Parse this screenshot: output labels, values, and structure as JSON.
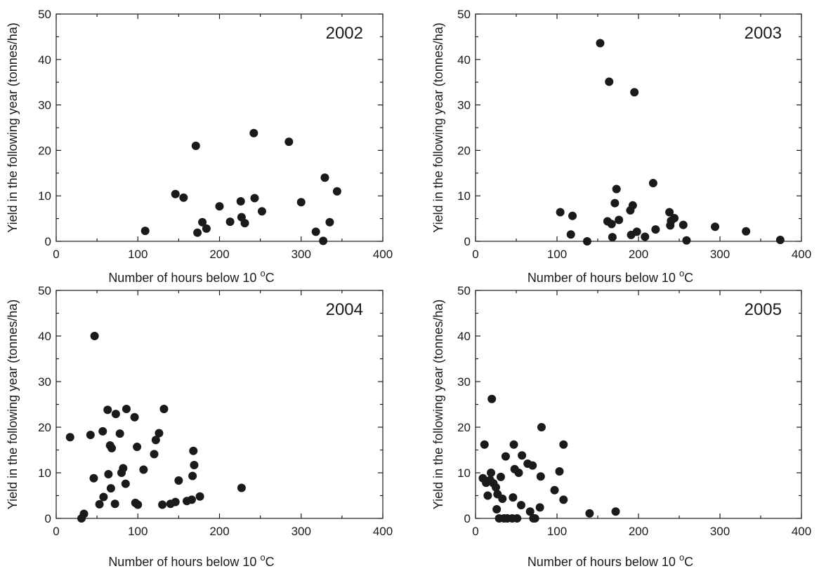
{
  "chart_data": [
    {
      "type": "scatter",
      "title": "2002",
      "xlabel": "Number of hours below 10",
      "xlabel_unit_sup": "o",
      "xlabel_unit": "C",
      "ylabel": "Yield in the following year (tonnes/ha)",
      "xlim": [
        0,
        400
      ],
      "ylim": [
        0,
        50
      ],
      "xticks": [
        "0",
        "100",
        "200",
        "300",
        "400"
      ],
      "yticks": [
        "0",
        "10",
        "20",
        "30",
        "40",
        "50"
      ],
      "grid": false,
      "points": [
        [
          109,
          2.3
        ],
        [
          146,
          10.4
        ],
        [
          156,
          9.6
        ],
        [
          171,
          21.0
        ],
        [
          173,
          1.9
        ],
        [
          179,
          4.2
        ],
        [
          184,
          2.8
        ],
        [
          200,
          7.7
        ],
        [
          213,
          4.3
        ],
        [
          226,
          8.8
        ],
        [
          227,
          5.3
        ],
        [
          231,
          4.0
        ],
        [
          242,
          23.8
        ],
        [
          243,
          9.5
        ],
        [
          252,
          6.6
        ],
        [
          285,
          21.9
        ],
        [
          300,
          8.6
        ],
        [
          318,
          2.1
        ],
        [
          327,
          0.1
        ],
        [
          329,
          14.0
        ],
        [
          335,
          4.2
        ],
        [
          344,
          11.0
        ]
      ]
    },
    {
      "type": "scatter",
      "title": "2003",
      "xlabel": "Number of hours below 10",
      "xlabel_unit_sup": "o",
      "xlabel_unit": "C",
      "ylabel": "Yield in the following year (tonnes/ha)",
      "xlim": [
        0,
        400
      ],
      "ylim": [
        0,
        50
      ],
      "xticks": [
        "0",
        "100",
        "200",
        "300",
        "400"
      ],
      "yticks": [
        "0",
        "10",
        "20",
        "30",
        "40",
        "50"
      ],
      "grid": false,
      "points": [
        [
          104,
          6.4
        ],
        [
          117,
          1.5
        ],
        [
          119,
          5.6
        ],
        [
          137,
          0.0
        ],
        [
          153,
          43.6
        ],
        [
          162,
          4.4
        ],
        [
          164,
          35.1
        ],
        [
          167,
          3.8
        ],
        [
          168,
          0.9
        ],
        [
          171,
          8.4
        ],
        [
          173,
          11.5
        ],
        [
          176,
          4.7
        ],
        [
          190,
          6.8
        ],
        [
          191,
          1.4
        ],
        [
          193,
          7.9
        ],
        [
          195,
          32.8
        ],
        [
          198,
          2.1
        ],
        [
          208,
          1.0
        ],
        [
          218,
          12.8
        ],
        [
          221,
          2.6
        ],
        [
          238,
          6.4
        ],
        [
          239,
          3.5
        ],
        [
          240,
          4.5
        ],
        [
          244,
          5.1
        ],
        [
          255,
          3.6
        ],
        [
          259,
          0.2
        ],
        [
          294,
          3.2
        ],
        [
          332,
          2.2
        ],
        [
          374,
          0.3
        ]
      ]
    },
    {
      "type": "scatter",
      "title": "2004",
      "xlabel": "Number of hours below 10",
      "xlabel_unit_sup": "o",
      "xlabel_unit": "C",
      "ylabel": "Yield in the following year (tonnes/ha)",
      "xlim": [
        0,
        400
      ],
      "ylim": [
        0,
        50
      ],
      "xticks": [
        "0",
        "100",
        "200",
        "300",
        "400"
      ],
      "yticks": [
        "0",
        "10",
        "20",
        "30",
        "40",
        "50"
      ],
      "grid": false,
      "points": [
        [
          17,
          17.8
        ],
        [
          31,
          0.0
        ],
        [
          34,
          1.0
        ],
        [
          42,
          18.3
        ],
        [
          46,
          8.8
        ],
        [
          47,
          40.0
        ],
        [
          53,
          3.1
        ],
        [
          57,
          19.1
        ],
        [
          58,
          4.7
        ],
        [
          63,
          23.8
        ],
        [
          64,
          9.7
        ],
        [
          66,
          16.0
        ],
        [
          67,
          6.6
        ],
        [
          68,
          15.4
        ],
        [
          72,
          3.2
        ],
        [
          73,
          22.9
        ],
        [
          78,
          18.6
        ],
        [
          80,
          10.0
        ],
        [
          82,
          11.0
        ],
        [
          85,
          7.6
        ],
        [
          86,
          24.0
        ],
        [
          96,
          22.2
        ],
        [
          97,
          3.4
        ],
        [
          99,
          15.7
        ],
        [
          100,
          3.0
        ],
        [
          107,
          10.7
        ],
        [
          120,
          14.1
        ],
        [
          122,
          17.2
        ],
        [
          126,
          18.7
        ],
        [
          130,
          3.0
        ],
        [
          132,
          24.0
        ],
        [
          140,
          3.2
        ],
        [
          146,
          3.6
        ],
        [
          150,
          8.3
        ],
        [
          160,
          3.8
        ],
        [
          166,
          4.1
        ],
        [
          167,
          9.3
        ],
        [
          168,
          14.8
        ],
        [
          169,
          11.7
        ],
        [
          176,
          4.8
        ],
        [
          227,
          6.7
        ]
      ]
    },
    {
      "type": "scatter",
      "title": "2005",
      "xlabel": "Number of hours below 10",
      "xlabel_unit_sup": "o",
      "xlabel_unit": "C",
      "ylabel": "Yield in the following year (tonnes/ha)",
      "xlim": [
        0,
        400
      ],
      "ylim": [
        0,
        50
      ],
      "xticks": [
        "0",
        "100",
        "200",
        "300",
        "400"
      ],
      "yticks": [
        "0",
        "10",
        "20",
        "30",
        "40",
        "50"
      ],
      "grid": false,
      "points": [
        [
          9,
          8.8
        ],
        [
          11,
          16.2
        ],
        [
          13,
          7.8
        ],
        [
          15,
          5.0
        ],
        [
          18,
          8.4
        ],
        [
          19,
          10.0
        ],
        [
          20,
          26.2
        ],
        [
          22,
          7.7
        ],
        [
          25,
          6.8
        ],
        [
          26,
          2.0
        ],
        [
          27,
          5.3
        ],
        [
          29,
          0.0
        ],
        [
          31,
          9.1
        ],
        [
          33,
          4.3
        ],
        [
          35,
          0.0
        ],
        [
          37,
          13.6
        ],
        [
          39,
          0.0
        ],
        [
          45,
          0.0
        ],
        [
          46,
          4.6
        ],
        [
          47,
          16.2
        ],
        [
          48,
          10.8
        ],
        [
          51,
          0.0
        ],
        [
          53,
          10.0
        ],
        [
          56,
          2.9
        ],
        [
          57,
          13.8
        ],
        [
          64,
          12.0
        ],
        [
          67,
          1.5
        ],
        [
          70,
          11.6
        ],
        [
          71,
          0.0
        ],
        [
          73,
          0.0
        ],
        [
          79,
          2.4
        ],
        [
          80,
          9.2
        ],
        [
          81,
          20.0
        ],
        [
          97,
          6.2
        ],
        [
          103,
          10.3
        ],
        [
          108,
          16.2
        ],
        [
          108,
          4.1
        ],
        [
          140,
          1.1
        ],
        [
          172,
          1.5
        ]
      ]
    }
  ]
}
